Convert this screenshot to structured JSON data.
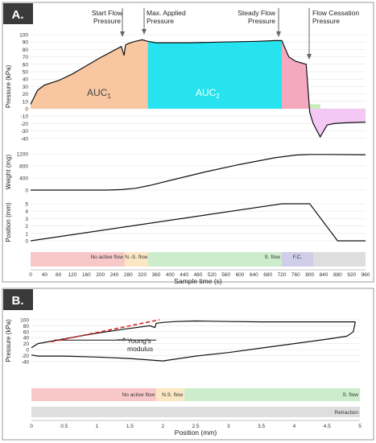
{
  "panel_a": {
    "letter": "A.",
    "annotations": {
      "start_flow": [
        "Start Flow",
        "Pressure"
      ],
      "max_applied": [
        "Max. Applied",
        "Pressure"
      ],
      "steady_flow": [
        "Steady Flow",
        "Pressure"
      ],
      "flow_cessation": [
        "Flow Cessation",
        "Pressure"
      ]
    },
    "auc1": {
      "main": "AUC",
      "sub": "1"
    },
    "auc2": {
      "main": "AUC",
      "sub": "2"
    }
  },
  "panel_b": {
    "letter": "B.",
    "youngs_modulus": [
      "Young's",
      "modulus"
    ]
  },
  "colors": {
    "auc1": "#f8c6a0",
    "auc2": "#27e3ef",
    "steady_area": "#f4a9bf",
    "cessation_area": "#c8ecb8",
    "negative_area": "#f4c8f4",
    "band_no_active": "#f8c8c8",
    "band_ns": "#fbe7c4",
    "band_s": "#cdeccc",
    "band_fc": "#cfcde8",
    "band_retraction": "#dedede",
    "tangent": "#dd2222"
  },
  "chart_data": [
    {
      "id": "A-pressure",
      "type": "area",
      "ylabel": "Pressure (kPa)",
      "ylim": [
        -40,
        100
      ],
      "y_ticks": [
        100,
        90,
        80,
        70,
        60,
        50,
        40,
        30,
        20,
        10,
        0,
        -10,
        -20,
        -30,
        -40
      ],
      "x": [
        0,
        20,
        40,
        80,
        120,
        160,
        200,
        240,
        260,
        268,
        272,
        280,
        300,
        320,
        336,
        360,
        450,
        550,
        650,
        700,
        720,
        740,
        760,
        790,
        800,
        810,
        830,
        850,
        870,
        900,
        960
      ],
      "y": [
        6,
        25,
        32,
        38,
        47,
        58,
        69,
        79,
        84,
        72,
        86,
        88,
        91,
        93,
        91,
        89,
        89,
        90,
        91,
        92,
        92,
        70,
        64,
        60,
        -5,
        -20,
        -38,
        -22,
        -20,
        -19,
        -18
      ],
      "regions": [
        "AUC1 0-336 s",
        "AUC2 336-720 s",
        "720-800 s",
        "800-830 s",
        "800-960 s below 0"
      ],
      "grid": true
    },
    {
      "id": "A-weight",
      "type": "line",
      "ylabel": "Weight (mg)",
      "ylim": [
        0,
        1200
      ],
      "y_ticks": [
        1200,
        800,
        400,
        0
      ],
      "x": [
        0,
        220,
        260,
        300,
        340,
        400,
        500,
        600,
        700,
        760,
        800,
        850,
        960
      ],
      "y": [
        0,
        0,
        15,
        60,
        150,
        320,
        600,
        850,
        1070,
        1160,
        1180,
        1180,
        1170
      ],
      "grid": true
    },
    {
      "id": "A-position",
      "type": "line",
      "ylabel": "Position (mm)",
      "xlabel": "Sample time (s)",
      "ylim": [
        0,
        5
      ],
      "y_ticks": [
        5,
        4,
        3,
        2,
        1,
        0
      ],
      "x_ticks": [
        0,
        40,
        80,
        120,
        160,
        200,
        240,
        280,
        320,
        360,
        400,
        440,
        480,
        520,
        560,
        600,
        640,
        680,
        720,
        760,
        800,
        840,
        880,
        920,
        960
      ],
      "xlim": [
        0,
        960
      ],
      "x": [
        0,
        720,
        800,
        880,
        960
      ],
      "y": [
        0,
        5,
        5,
        0,
        0
      ],
      "bands": [
        {
          "label": "No active flow",
          "from": 0,
          "to": 270,
          "color": "#f8c8c8"
        },
        {
          "label": "N.-S. flow",
          "from": 270,
          "to": 336,
          "color": "#fbe7c4"
        },
        {
          "label": "S. flow",
          "from": 336,
          "to": 720,
          "color": "#cdeccc"
        },
        {
          "label": "F.C.",
          "from": 720,
          "to": 810,
          "color": "#cfcde8"
        },
        {
          "label": "",
          "from": 810,
          "to": 960,
          "color": "#dedede"
        }
      ],
      "grid": true
    },
    {
      "id": "B-pressure-position",
      "type": "line",
      "ylabel": "Pressure (kPa)",
      "xlabel": "Position (mm)",
      "ylim": [
        -40,
        100
      ],
      "y_ticks": [
        100,
        80,
        60,
        40,
        20,
        0,
        -20,
        -40
      ],
      "x_ticks": [
        "0",
        "0.5",
        "1",
        "1.5",
        "2",
        "2.5",
        "3",
        "3.5",
        "4",
        "4.5",
        "5"
      ],
      "xlim": [
        0,
        5
      ],
      "loading": {
        "x": [
          0,
          0.1,
          0.3,
          0.6,
          1.0,
          1.4,
          1.8,
          1.88,
          1.9,
          2.0,
          2.2,
          2.5,
          3.0,
          3.5,
          4.0,
          4.5,
          4.93
        ],
        "y": [
          6,
          20,
          28,
          40,
          55,
          68,
          80,
          74,
          88,
          91,
          94,
          96,
          94,
          93,
          93,
          93,
          93
        ]
      },
      "retraction": {
        "x": [
          4.93,
          4.9,
          4.85,
          4.8,
          4.5,
          4.0,
          3.5,
          3.0,
          2.5,
          2.0,
          1.5,
          1.0,
          0.5,
          0.1,
          0
        ],
        "y": [
          93,
          60,
          52,
          45,
          35,
          20,
          5,
          -10,
          -22,
          -38,
          -30,
          -25,
          -22,
          -22,
          -18
        ]
      },
      "tangent": {
        "x": [
          0.3,
          1.95
        ],
        "y": [
          26,
          100
        ]
      },
      "modulus_line": {
        "x": [
          0.35,
          1.9
        ],
        "y": [
          32,
          32
        ]
      },
      "bands": [
        {
          "label": "No active flow",
          "from": 0,
          "to": 1.9,
          "color": "#f8c8c8"
        },
        {
          "label": "N.S. flow",
          "from": 1.9,
          "to": 2.33,
          "color": "#fbe7c4"
        },
        {
          "label": "S. flow",
          "from": 2.33,
          "to": 5,
          "color": "#cdeccc"
        }
      ],
      "retraction_band": {
        "label": "Retraction",
        "from": 0,
        "to": 5,
        "color": "#dedede"
      },
      "grid": true
    }
  ]
}
